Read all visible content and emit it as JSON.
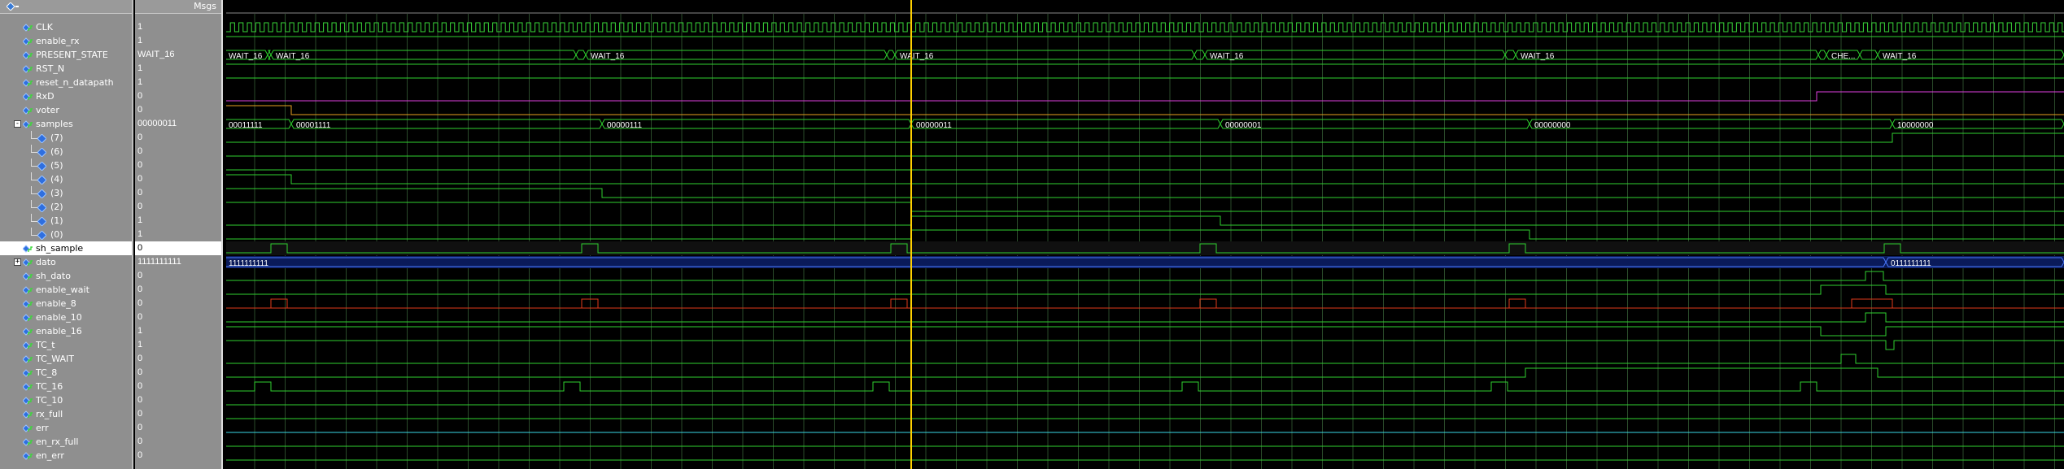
{
  "header": {
    "msgs_label": "Msgs"
  },
  "signals": [
    {
      "name": "CLK",
      "value": "1",
      "indent": 0,
      "icon": "wave"
    },
    {
      "name": "enable_rx",
      "value": "1",
      "indent": 0,
      "icon": "wave"
    },
    {
      "name": "PRESENT_STATE",
      "value": "WAIT_16",
      "indent": 0,
      "icon": "wave"
    },
    {
      "name": "RST_N",
      "value": "1",
      "indent": 0,
      "icon": "wave"
    },
    {
      "name": "reset_n_datapath",
      "value": "1",
      "indent": 0,
      "icon": "wave"
    },
    {
      "name": "RxD",
      "value": "0",
      "indent": 0,
      "icon": "wave"
    },
    {
      "name": "voter",
      "value": "0",
      "indent": 0,
      "icon": "wave"
    },
    {
      "name": "samples",
      "value": "00000011",
      "indent": 0,
      "icon": "wave",
      "expander": "-"
    },
    {
      "name": "(7)",
      "value": "0",
      "indent": 1,
      "icon": "diamond"
    },
    {
      "name": "(6)",
      "value": "0",
      "indent": 1,
      "icon": "diamond"
    },
    {
      "name": "(5)",
      "value": "0",
      "indent": 1,
      "icon": "diamond"
    },
    {
      "name": "(4)",
      "value": "0",
      "indent": 1,
      "icon": "diamond"
    },
    {
      "name": "(3)",
      "value": "0",
      "indent": 1,
      "icon": "diamond"
    },
    {
      "name": "(2)",
      "value": "0",
      "indent": 1,
      "icon": "diamond"
    },
    {
      "name": "(1)",
      "value": "1",
      "indent": 1,
      "icon": "diamond"
    },
    {
      "name": "(0)",
      "value": "1",
      "indent": 1,
      "icon": "diamond"
    },
    {
      "name": "sh_sample",
      "value": "0",
      "indent": 0,
      "icon": "wave",
      "selected": true
    },
    {
      "name": "dato",
      "value": "1111111111",
      "indent": 0,
      "icon": "wave",
      "expander": "+"
    },
    {
      "name": "sh_dato",
      "value": "0",
      "indent": 0,
      "icon": "wave"
    },
    {
      "name": "enable_wait",
      "value": "0",
      "indent": 0,
      "icon": "wave"
    },
    {
      "name": "enable_8",
      "value": "0",
      "indent": 0,
      "icon": "wave"
    },
    {
      "name": "enable_10",
      "value": "0",
      "indent": 0,
      "icon": "wave"
    },
    {
      "name": "enable_16",
      "value": "1",
      "indent": 0,
      "icon": "wave"
    },
    {
      "name": "TC_t",
      "value": "1",
      "indent": 0,
      "icon": "wave"
    },
    {
      "name": "TC_WAIT",
      "value": "0",
      "indent": 0,
      "icon": "wave"
    },
    {
      "name": "TC_8",
      "value": "0",
      "indent": 0,
      "icon": "wave"
    },
    {
      "name": "TC_16",
      "value": "0",
      "indent": 0,
      "icon": "wave"
    },
    {
      "name": "TC_10",
      "value": "0",
      "indent": 0,
      "icon": "wave"
    },
    {
      "name": "rx_full",
      "value": "0",
      "indent": 0,
      "icon": "wave"
    },
    {
      "name": "err",
      "value": "0",
      "indent": 0,
      "icon": "wave"
    },
    {
      "name": "en_rx_full",
      "value": "0",
      "indent": 0,
      "icon": "wave"
    },
    {
      "name": "en_err",
      "value": "0",
      "indent": 0,
      "icon": "wave"
    }
  ],
  "wave_labels": {
    "present_state": [
      "WAIT_16",
      "WAIT_16",
      "WAIT_16",
      "WAIT_16",
      "WAIT_16",
      "WAIT_16",
      "CHE...",
      "WAIT_16"
    ],
    "samples": [
      "00011111",
      "00001111",
      "00000111",
      "00000011",
      "00000001",
      "00000000",
      "10000000"
    ],
    "dato": [
      "1111111111",
      "0111111111"
    ]
  },
  "colors": {
    "clk": "#39d639",
    "green": "#2fd12f",
    "orange": "#e8a020",
    "magenta": "#e040e0",
    "red": "#e03a1a",
    "cyan": "#3ad8e8",
    "cursor": "#ffd000",
    "grid": "#2a4a2a",
    "bus_bg": "#0a1a5a"
  }
}
